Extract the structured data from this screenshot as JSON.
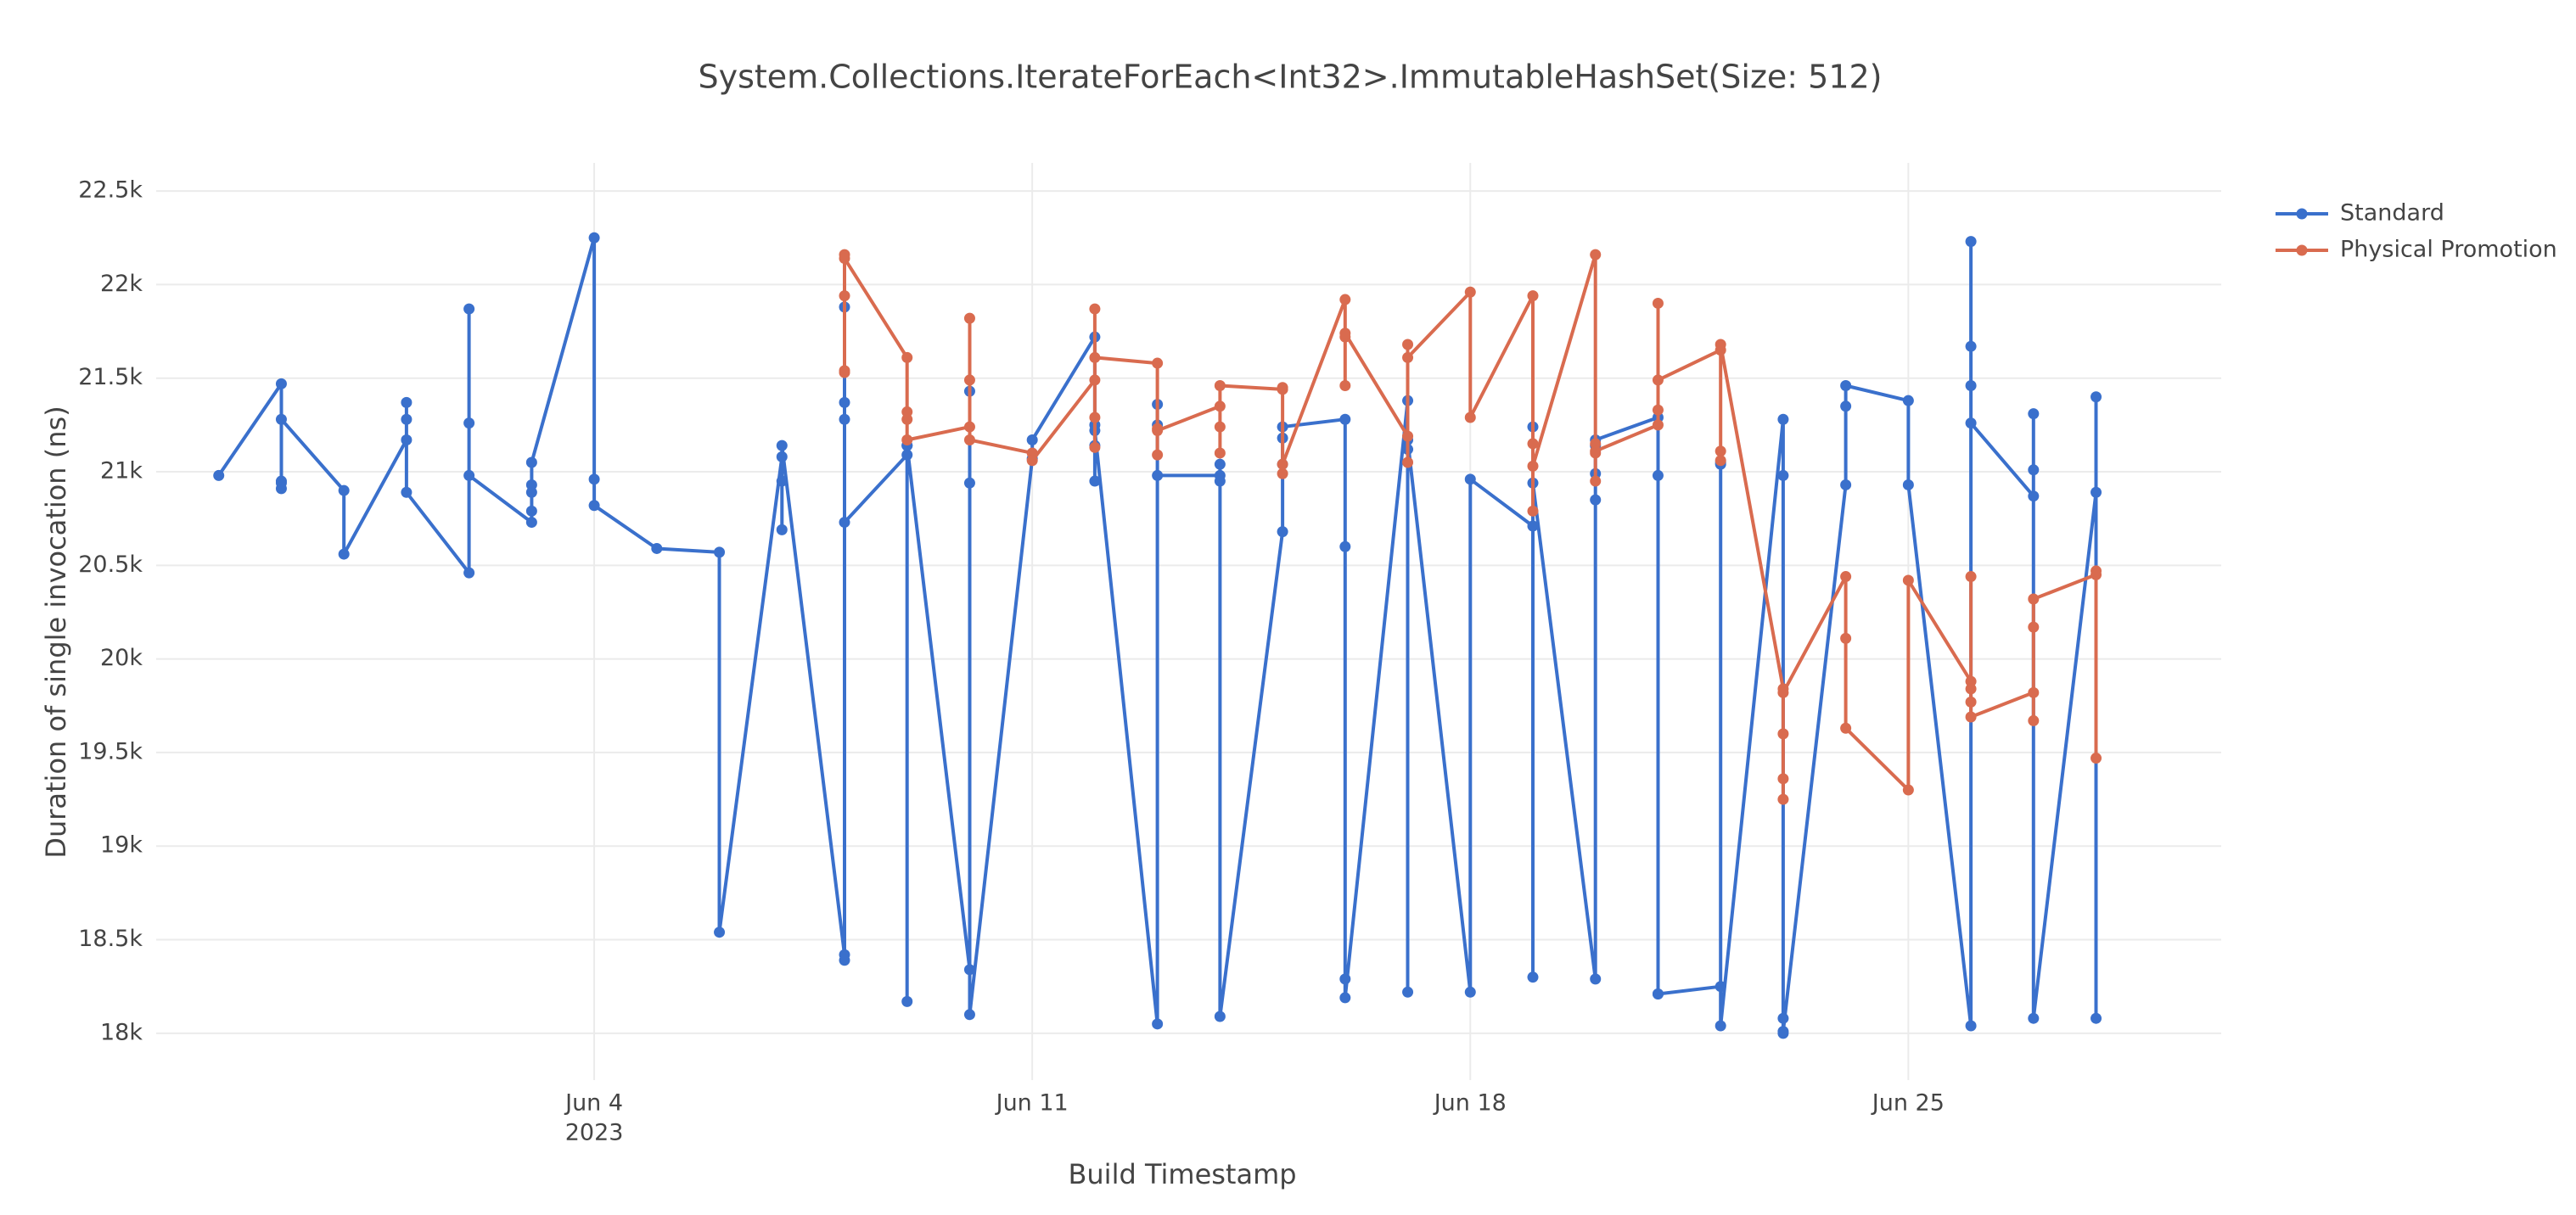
{
  "chart_data": {
    "type": "line",
    "title": "System.Collections.IterateForEach<Int32>.ImmutableHashSet(Size: 512)",
    "x_label": "Build Timestamp",
    "y_label": "Duration of single invocation (ns)",
    "xlim": [
      "2023-05-28",
      "2023-06-30"
    ],
    "xticks": [
      {
        "value": "2023-06-04",
        "label": "Jun 4",
        "sublabel": "2023"
      },
      {
        "value": "2023-06-11",
        "label": "Jun 11"
      },
      {
        "value": "2023-06-18",
        "label": "Jun 18"
      },
      {
        "value": "2023-06-25",
        "label": "Jun 25"
      }
    ],
    "ylim": [
      17750,
      22650
    ],
    "yticks": [
      {
        "value": 18000,
        "label": "18k"
      },
      {
        "value": 18500,
        "label": "18.5k"
      },
      {
        "value": 19000,
        "label": "19k"
      },
      {
        "value": 19500,
        "label": "19.5k"
      },
      {
        "value": 20000,
        "label": "20k"
      },
      {
        "value": 20500,
        "label": "20.5k"
      },
      {
        "value": 21000,
        "label": "21k"
      },
      {
        "value": 21500,
        "label": "21.5k"
      },
      {
        "value": 22000,
        "label": "22k"
      },
      {
        "value": 22500,
        "label": "22.5k"
      }
    ],
    "grid": true,
    "legend": "right",
    "series": [
      {
        "name": "Standard",
        "color": "#3a70cc",
        "x": [
          "2023-05-29",
          "2023-05-30",
          "2023-05-30",
          "2023-05-30",
          "2023-05-30",
          "2023-05-30",
          "2023-05-31",
          "2023-05-31",
          "2023-06-01",
          "2023-06-01",
          "2023-06-01",
          "2023-06-01",
          "2023-06-02",
          "2023-06-02",
          "2023-06-02",
          "2023-06-02",
          "2023-06-03",
          "2023-06-03",
          "2023-06-03",
          "2023-06-03",
          "2023-06-03",
          "2023-06-04",
          "2023-06-04",
          "2023-06-04",
          "2023-06-05",
          "2023-06-06",
          "2023-06-06",
          "2023-06-07",
          "2023-06-07",
          "2023-06-07",
          "2023-06-07",
          "2023-06-08",
          "2023-06-08",
          "2023-06-08",
          "2023-06-08",
          "2023-06-08",
          "2023-06-08",
          "2023-06-09",
          "2023-06-09",
          "2023-06-09",
          "2023-06-09",
          "2023-06-10",
          "2023-06-10",
          "2023-06-10",
          "2023-06-10",
          "2023-06-11",
          "2023-06-11",
          "2023-06-12",
          "2023-06-12",
          "2023-06-12",
          "2023-06-12",
          "2023-06-12",
          "2023-06-13",
          "2023-06-13",
          "2023-06-13",
          "2023-06-13",
          "2023-06-14",
          "2023-06-14",
          "2023-06-14",
          "2023-06-14",
          "2023-06-15",
          "2023-06-15",
          "2023-06-15",
          "2023-06-15",
          "2023-06-16",
          "2023-06-16",
          "2023-06-16",
          "2023-06-16",
          "2023-06-17",
          "2023-06-17",
          "2023-06-17",
          "2023-06-17",
          "2023-06-18",
          "2023-06-18",
          "2023-06-19",
          "2023-06-19",
          "2023-06-19",
          "2023-06-19",
          "2023-06-20",
          "2023-06-20",
          "2023-06-20",
          "2023-06-20",
          "2023-06-20",
          "2023-06-21",
          "2023-06-21",
          "2023-06-21",
          "2023-06-21",
          "2023-06-22",
          "2023-06-22",
          "2023-06-22",
          "2023-06-22",
          "2023-06-23",
          "2023-06-23",
          "2023-06-23",
          "2023-06-23",
          "2023-06-23",
          "2023-06-24",
          "2023-06-24",
          "2023-06-24",
          "2023-06-25",
          "2023-06-25",
          "2023-06-26",
          "2023-06-26",
          "2023-06-26",
          "2023-06-26",
          "2023-06-26",
          "2023-06-27",
          "2023-06-27",
          "2023-06-27",
          "2023-06-27",
          "2023-06-28",
          "2023-06-28",
          "2023-06-28"
        ],
        "values": [
          20980,
          21470,
          20950,
          20910,
          20940,
          21280,
          20900,
          20560,
          21170,
          21280,
          21370,
          20890,
          20460,
          21870,
          21260,
          20980,
          20730,
          20790,
          20930,
          20890,
          21050,
          22250,
          20960,
          20820,
          20590,
          20570,
          18540,
          21080,
          20950,
          20690,
          21140,
          18420,
          21370,
          21280,
          21880,
          18390,
          20730,
          21090,
          21140,
          18170,
          21140,
          18340,
          21430,
          20940,
          18100,
          21070,
          21170,
          21720,
          20950,
          21140,
          21250,
          21220,
          18050,
          21250,
          21360,
          20980,
          20980,
          20950,
          21040,
          18090,
          20680,
          21180,
          21040,
          21240,
          21280,
          20600,
          18290,
          18190,
          21380,
          18220,
          21120,
          21170,
          18220,
          20960,
          20710,
          21240,
          18300,
          20940,
          18290,
          20850,
          20990,
          21140,
          21170,
          21290,
          18210,
          20980,
          18210,
          18250,
          21040,
          21050,
          18040,
          21280,
          20980,
          18080,
          18000,
          18010,
          20930,
          21350,
          21460,
          21380,
          20930,
          18040,
          22230,
          21670,
          21460,
          21260,
          20870,
          21310,
          21010,
          18080,
          20890,
          21400,
          18080
        ]
      },
      {
        "name": "Physical Promotion",
        "color": "#d96b4f",
        "x": [
          "2023-06-08",
          "2023-06-08",
          "2023-06-08",
          "2023-06-08",
          "2023-06-08",
          "2023-06-09",
          "2023-06-09",
          "2023-06-09",
          "2023-06-09",
          "2023-06-10",
          "2023-06-10",
          "2023-06-10",
          "2023-06-10",
          "2023-06-11",
          "2023-06-11",
          "2023-06-12",
          "2023-06-12",
          "2023-06-12",
          "2023-06-12",
          "2023-06-12",
          "2023-06-13",
          "2023-06-13",
          "2023-06-13",
          "2023-06-13",
          "2023-06-14",
          "2023-06-14",
          "2023-06-14",
          "2023-06-14",
          "2023-06-15",
          "2023-06-15",
          "2023-06-15",
          "2023-06-15",
          "2023-06-16",
          "2023-06-16",
          "2023-06-16",
          "2023-06-16",
          "2023-06-17",
          "2023-06-17",
          "2023-06-17",
          "2023-06-17",
          "2023-06-18",
          "2023-06-18",
          "2023-06-19",
          "2023-06-19",
          "2023-06-19",
          "2023-06-19",
          "2023-06-20",
          "2023-06-20",
          "2023-06-20",
          "2023-06-20",
          "2023-06-20",
          "2023-06-21",
          "2023-06-21",
          "2023-06-21",
          "2023-06-21",
          "2023-06-22",
          "2023-06-22",
          "2023-06-22",
          "2023-06-22",
          "2023-06-23",
          "2023-06-23",
          "2023-06-23",
          "2023-06-23",
          "2023-06-23",
          "2023-06-24",
          "2023-06-24",
          "2023-06-24",
          "2023-06-25",
          "2023-06-25",
          "2023-06-26",
          "2023-06-26",
          "2023-06-26",
          "2023-06-26",
          "2023-06-26",
          "2023-06-27",
          "2023-06-27",
          "2023-06-27",
          "2023-06-27",
          "2023-06-28",
          "2023-06-28",
          "2023-06-28"
        ],
        "values": [
          21940,
          21540,
          22160,
          21530,
          22140,
          21610,
          21280,
          21320,
          21170,
          21240,
          21490,
          21820,
          21170,
          21100,
          21060,
          21490,
          21130,
          21290,
          21870,
          21610,
          21580,
          21090,
          21230,
          21220,
          21350,
          21240,
          21100,
          21460,
          21440,
          20990,
          21450,
          21040,
          21920,
          21460,
          21720,
          21740,
          21190,
          21050,
          21680,
          21610,
          21960,
          21290,
          21940,
          21150,
          20790,
          21030,
          22160,
          21100,
          20950,
          21150,
          21110,
          21250,
          21900,
          21330,
          21490,
          21650,
          21110,
          21060,
          21680,
          19840,
          19250,
          19360,
          19600,
          19820,
          20440,
          20110,
          19630,
          19300,
          20420,
          19880,
          20440,
          19840,
          19770,
          19690,
          19820,
          19670,
          20170,
          20320,
          20450,
          19470,
          20470
        ]
      }
    ]
  }
}
